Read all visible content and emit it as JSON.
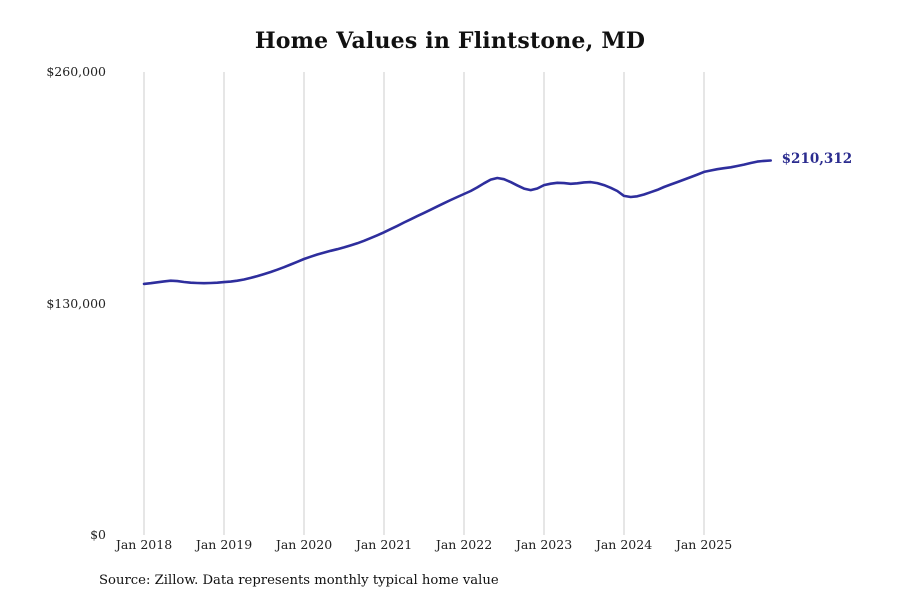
{
  "title": "Home Values in Flintstone, MD",
  "source_note": "Source: Zillow. Data represents monthly typical home value",
  "colors": {
    "line": "#2e2e9d",
    "label": "#2b2c8f",
    "grid": "#cccccc",
    "text": "#222222"
  },
  "chart_data": {
    "type": "line",
    "title": "Home Values in Flintstone, MD",
    "xlabel": "",
    "ylabel": "",
    "x_start": "Jan 2018",
    "x_interval": "month",
    "ylim": [
      0,
      260000
    ],
    "grid": "vertical-only",
    "legend": false,
    "end_annotation": "$210,312",
    "end_value": 210312,
    "x_ticks": [
      "Jan 2018",
      "Jan 2019",
      "Jan 2020",
      "Jan 2021",
      "Jan 2022",
      "Jan 2023",
      "Jan 2024",
      "Jan 2025"
    ],
    "y_ticks": [
      {
        "label": "$260,000",
        "value": 260000
      },
      {
        "label": "$130,000",
        "value": 130000
      },
      {
        "label": "$0",
        "value": 0
      }
    ],
    "values": [
      141000,
      141400,
      141900,
      142400,
      142800,
      142600,
      142100,
      141700,
      141500,
      141400,
      141500,
      141700,
      142000,
      142300,
      142800,
      143500,
      144400,
      145400,
      146500,
      147700,
      149000,
      150400,
      151900,
      153400,
      155000,
      156300,
      157500,
      158600,
      159600,
      160500,
      161500,
      162600,
      163800,
      165200,
      166700,
      168300,
      170000,
      171800,
      173600,
      175500,
      177300,
      179100,
      180900,
      182700,
      184500,
      186300,
      188100,
      189800,
      191500,
      193200,
      195200,
      197500,
      199600,
      200500,
      199800,
      198200,
      196300,
      194500,
      193700,
      194600,
      196500,
      197300,
      197800,
      197600,
      197200,
      197500,
      198000,
      198200,
      197600,
      196500,
      195000,
      193200,
      190400,
      189800,
      190200,
      191200,
      192500,
      193800,
      195400,
      196800,
      198200,
      199600,
      201000,
      202400,
      203900,
      204700,
      205400,
      206000,
      206500,
      207200,
      208000,
      208900,
      209700,
      210100,
      210312
    ]
  }
}
